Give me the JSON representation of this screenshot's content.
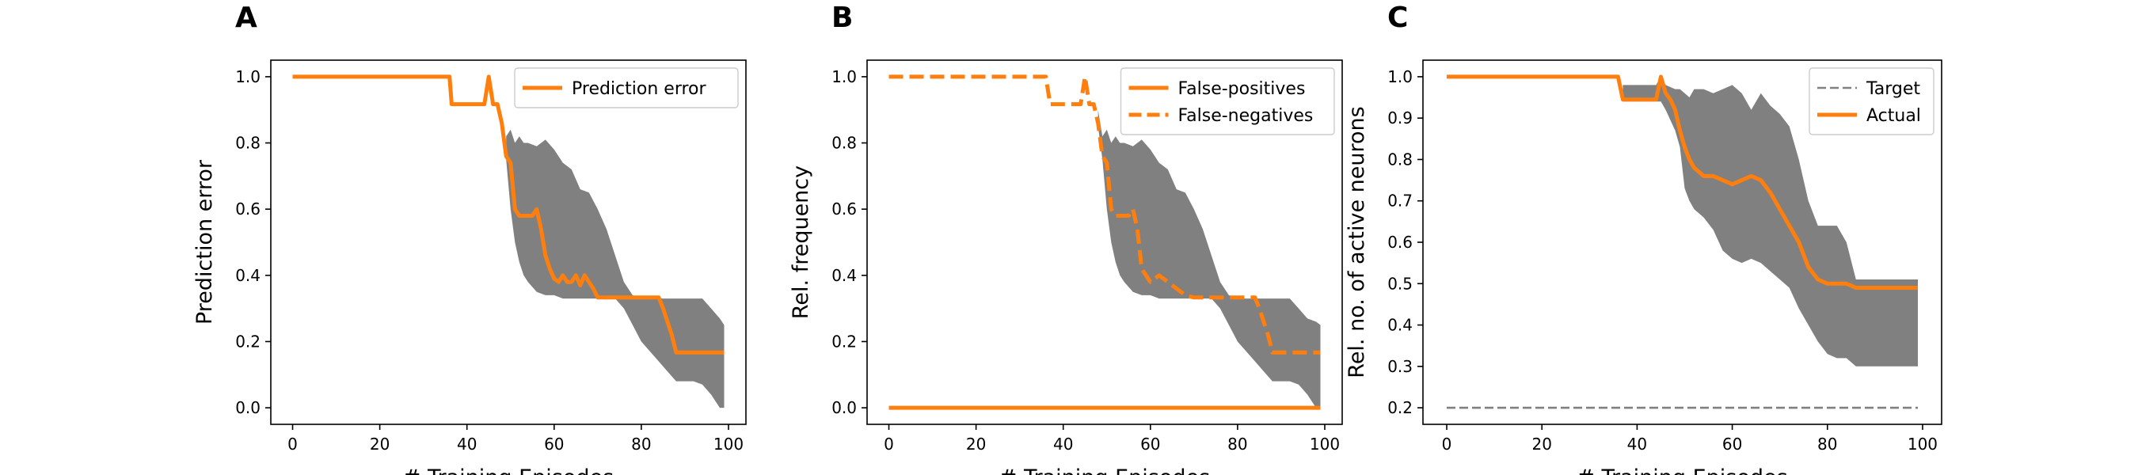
{
  "colors": {
    "line": "#ff7f0e",
    "band": "#808080",
    "target": "#808080"
  },
  "chart_data": [
    {
      "panel": "A",
      "type": "line",
      "xlabel": "# Training Episodes",
      "ylabel": "Prediction error",
      "xlim": [
        -5,
        104
      ],
      "ylim": [
        -0.05,
        1.05
      ],
      "xticks": [
        0,
        20,
        40,
        60,
        80,
        100
      ],
      "yticks": [
        0.0,
        0.2,
        0.4,
        0.6,
        0.8,
        1.0
      ],
      "ytick_labels": [
        "0.0",
        "0.2",
        "0.4",
        "0.6",
        "0.8",
        "1.0"
      ],
      "legend_position": "upper right",
      "band": {
        "x": [
          49,
          50,
          51,
          52,
          53,
          54,
          56,
          58,
          60,
          62,
          64,
          66,
          68,
          70,
          72,
          74,
          76,
          78,
          80,
          82,
          84,
          86,
          88,
          90,
          92,
          94,
          96,
          98,
          99
        ],
        "upper": [
          0.82,
          0.84,
          0.8,
          0.82,
          0.8,
          0.8,
          0.79,
          0.81,
          0.78,
          0.74,
          0.72,
          0.66,
          0.65,
          0.6,
          0.54,
          0.46,
          0.38,
          0.34,
          0.33,
          0.33,
          0.33,
          0.33,
          0.33,
          0.33,
          0.33,
          0.33,
          0.3,
          0.27,
          0.25
        ],
        "lower": [
          0.75,
          0.6,
          0.5,
          0.44,
          0.4,
          0.38,
          0.35,
          0.34,
          0.34,
          0.33,
          0.33,
          0.33,
          0.33,
          0.33,
          0.33,
          0.33,
          0.3,
          0.25,
          0.2,
          0.17,
          0.14,
          0.11,
          0.08,
          0.08,
          0.08,
          0.07,
          0.04,
          0.0,
          0.0
        ]
      },
      "series": [
        {
          "name": "Prediction error",
          "style": "solid",
          "x": [
            0,
            36,
            36.5,
            44,
            45,
            46,
            47,
            48,
            49,
            50,
            51,
            52,
            55,
            56,
            57,
            58,
            59,
            60,
            61,
            62,
            63,
            64,
            65,
            66,
            67,
            68,
            69,
            70,
            72,
            84,
            85,
            87,
            88,
            99
          ],
          "y": [
            1.0,
            1.0,
            0.917,
            0.917,
            1.0,
            0.917,
            0.917,
            0.86,
            0.76,
            0.74,
            0.6,
            0.58,
            0.58,
            0.6,
            0.54,
            0.46,
            0.42,
            0.39,
            0.38,
            0.4,
            0.38,
            0.38,
            0.4,
            0.37,
            0.4,
            0.38,
            0.36,
            0.333,
            0.333,
            0.333,
            0.3,
            0.22,
            0.167,
            0.167
          ]
        }
      ]
    },
    {
      "panel": "B",
      "type": "line",
      "xlabel": "# Training Episodes",
      "ylabel": "Rel. frequency",
      "xlim": [
        -5,
        104
      ],
      "ylim": [
        -0.05,
        1.05
      ],
      "xticks": [
        0,
        20,
        40,
        60,
        80,
        100
      ],
      "yticks": [
        0.0,
        0.2,
        0.4,
        0.6,
        0.8,
        1.0
      ],
      "ytick_labels": [
        "0.0",
        "0.2",
        "0.4",
        "0.6",
        "0.8",
        "1.0"
      ],
      "legend_position": "upper right",
      "band": {
        "x": [
          48,
          49,
          50,
          51,
          52,
          53,
          54,
          56,
          58,
          60,
          62,
          64,
          66,
          68,
          70,
          72,
          74,
          76,
          78,
          80,
          82,
          84,
          86,
          88,
          90,
          92,
          94,
          96,
          98,
          99
        ],
        "upper": [
          0.9,
          0.82,
          0.84,
          0.8,
          0.82,
          0.8,
          0.8,
          0.79,
          0.81,
          0.78,
          0.74,
          0.72,
          0.66,
          0.65,
          0.6,
          0.54,
          0.46,
          0.38,
          0.34,
          0.33,
          0.33,
          0.33,
          0.33,
          0.33,
          0.33,
          0.33,
          0.3,
          0.27,
          0.26,
          0.25
        ],
        "lower": [
          0.85,
          0.75,
          0.6,
          0.5,
          0.44,
          0.4,
          0.38,
          0.35,
          0.34,
          0.34,
          0.33,
          0.33,
          0.33,
          0.33,
          0.33,
          0.33,
          0.33,
          0.3,
          0.25,
          0.2,
          0.17,
          0.14,
          0.11,
          0.08,
          0.08,
          0.08,
          0.07,
          0.04,
          0.0,
          0.0
        ]
      },
      "series": [
        {
          "name": "False-positives",
          "style": "solid",
          "x": [
            0,
            99
          ],
          "y": [
            0.0,
            0.0
          ]
        },
        {
          "name": "False-negatives",
          "style": "dashed",
          "x": [
            0,
            36,
            37,
            44,
            45,
            46,
            47,
            48,
            49,
            50,
            51,
            52,
            55,
            56,
            57,
            58,
            60,
            62,
            64,
            66,
            68,
            70,
            84,
            85,
            87,
            88,
            99
          ],
          "y": [
            1.0,
            1.0,
            0.917,
            0.917,
            1.0,
            0.917,
            0.917,
            0.86,
            0.76,
            0.74,
            0.6,
            0.58,
            0.58,
            0.6,
            0.54,
            0.42,
            0.38,
            0.4,
            0.38,
            0.36,
            0.34,
            0.333,
            0.333,
            0.3,
            0.22,
            0.167,
            0.167
          ]
        }
      ]
    },
    {
      "panel": "C",
      "type": "line",
      "xlabel": "# Training Episodes",
      "ylabel": "Rel. no. of active neurons",
      "xlim": [
        -5,
        104
      ],
      "ylim": [
        0.16,
        1.04
      ],
      "xticks": [
        0,
        20,
        40,
        60,
        80,
        100
      ],
      "yticks": [
        0.2,
        0.3,
        0.4,
        0.5,
        0.6,
        0.7,
        0.8,
        0.9,
        1.0
      ],
      "ytick_labels": [
        "0.2",
        "0.3",
        "0.4",
        "0.5",
        "0.6",
        "0.7",
        "0.8",
        "0.9",
        "1.0"
      ],
      "legend_position": "upper right",
      "band": {
        "x": [
          37,
          44,
          45,
          46,
          48,
          49,
          50,
          51,
          52,
          54,
          56,
          58,
          60,
          62,
          64,
          66,
          68,
          70,
          72,
          74,
          76,
          78,
          80,
          82,
          84,
          86,
          88,
          90,
          92,
          94,
          96,
          98,
          99
        ],
        "upper": [
          0.98,
          0.98,
          1.0,
          0.98,
          0.97,
          0.97,
          0.96,
          0.95,
          0.97,
          0.97,
          0.96,
          0.97,
          0.98,
          0.96,
          0.92,
          0.96,
          0.93,
          0.91,
          0.88,
          0.8,
          0.7,
          0.64,
          0.64,
          0.64,
          0.6,
          0.51,
          0.51,
          0.51,
          0.51,
          0.51,
          0.51,
          0.51,
          0.51
        ],
        "lower": [
          0.94,
          0.94,
          0.94,
          0.92,
          0.87,
          0.83,
          0.73,
          0.7,
          0.68,
          0.66,
          0.63,
          0.58,
          0.56,
          0.55,
          0.56,
          0.55,
          0.53,
          0.51,
          0.49,
          0.44,
          0.4,
          0.36,
          0.33,
          0.32,
          0.32,
          0.3,
          0.3,
          0.3,
          0.3,
          0.3,
          0.3,
          0.3,
          0.3
        ]
      },
      "series": [
        {
          "name": "Target",
          "style": "dashed-thin",
          "x": [
            0,
            99
          ],
          "y": [
            0.2,
            0.2
          ]
        },
        {
          "name": "Actual",
          "style": "solid",
          "x": [
            0,
            36,
            37,
            44,
            45,
            46,
            47,
            48,
            49,
            50,
            51,
            52,
            53,
            54,
            56,
            58,
            60,
            62,
            64,
            66,
            68,
            70,
            72,
            74,
            76,
            78,
            80,
            84,
            86,
            99
          ],
          "y": [
            1.0,
            1.0,
            0.945,
            0.945,
            1.0,
            0.96,
            0.945,
            0.92,
            0.87,
            0.83,
            0.8,
            0.78,
            0.77,
            0.76,
            0.76,
            0.75,
            0.74,
            0.75,
            0.76,
            0.75,
            0.72,
            0.68,
            0.64,
            0.6,
            0.54,
            0.51,
            0.5,
            0.5,
            0.49,
            0.49
          ]
        }
      ]
    }
  ]
}
